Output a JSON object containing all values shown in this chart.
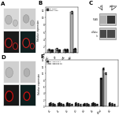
{
  "panel_b": {
    "categories": [
      "siC",
      "siF",
      "siA",
      "siAF"
    ],
    "series1_label": "No siRNA",
    "series2_label": "siRNA pool",
    "series1_values": [
      1.0,
      1.1,
      0.9,
      11.5
    ],
    "series2_values": [
      0.9,
      0.9,
      1.0,
      1.3
    ],
    "series1_color": "#aaaaaa",
    "series2_color": "#333333",
    "ylabel": "Relative expression",
    "ylim": [
      0,
      13
    ],
    "title": "B"
  },
  "panel_c": {
    "title": "C",
    "wb_label1": "FLAG",
    "wb_label2": "α-Tubu...",
    "bg_color": "#dddddd"
  },
  "panel_e": {
    "categories": [
      "siC",
      "si1",
      "si2",
      "si3",
      "si4",
      "si5",
      "siPool",
      "siX"
    ],
    "series1_label": "Ago1-AgoRISC-c",
    "series2_label": "Ago1-AgoRISC-c2",
    "series3_label": "Ago1-AgoRISC-c3",
    "series1_values": [
      1.0,
      0.9,
      1.0,
      0.9,
      0.8,
      1.0,
      8.5,
      0.9
    ],
    "series2_values": [
      0.8,
      0.7,
      0.8,
      0.7,
      0.7,
      0.8,
      11.5,
      0.7
    ],
    "series3_values": [
      0.5,
      0.5,
      0.6,
      0.5,
      0.5,
      0.6,
      10.0,
      0.5
    ],
    "series1_color": "#333333",
    "series2_color": "#888888",
    "series3_color": "#cccccc",
    "ylabel": "Relative expression",
    "ylim": [
      0,
      14
    ],
    "title": "E"
  },
  "bg_color": "#ffffff"
}
